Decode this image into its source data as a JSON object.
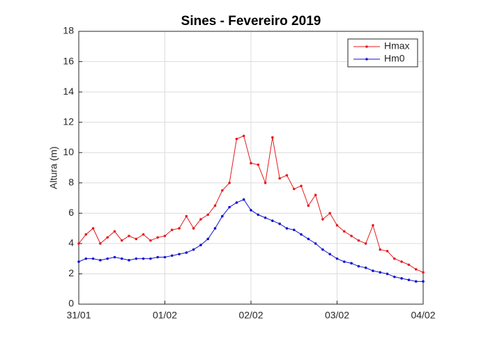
{
  "chart_data": {
    "type": "line",
    "title": "Sines - Fevereiro  2019",
    "y_label": "Altura (m)",
    "categories": [
      "31/01",
      null,
      null,
      null,
      null,
      null,
      null,
      null,
      null,
      null,
      null,
      null,
      "01/02",
      null,
      null,
      null,
      null,
      null,
      null,
      null,
      null,
      null,
      null,
      null,
      "02/02",
      null,
      null,
      null,
      null,
      null,
      null,
      null,
      null,
      null,
      null,
      null,
      "03/02",
      null,
      null,
      null,
      null,
      null,
      null,
      null,
      null,
      null,
      null,
      null,
      "04/02"
    ],
    "series": [
      {
        "name": "Hmax",
        "color": "#e41a1c",
        "values": [
          4.0,
          4.6,
          5.0,
          4.0,
          4.4,
          4.8,
          4.2,
          4.5,
          4.3,
          4.6,
          4.2,
          4.4,
          4.5,
          4.9,
          5.0,
          5.8,
          5.0,
          5.6,
          5.9,
          6.5,
          7.5,
          8.0,
          10.9,
          11.1,
          9.3,
          9.2,
          8.0,
          11.0,
          8.3,
          8.5,
          7.6,
          7.8,
          6.5,
          7.2,
          5.6,
          6.0,
          5.2,
          4.8,
          4.5,
          4.2,
          4.0,
          5.2,
          3.6,
          3.5,
          3.0,
          2.8,
          2.6,
          2.3,
          2.1
        ]
      },
      {
        "name": "Hm0",
        "color": "#1010d0",
        "values": [
          2.8,
          3.0,
          3.0,
          2.9,
          3.0,
          3.1,
          3.0,
          2.9,
          3.0,
          3.0,
          3.0,
          3.1,
          3.1,
          3.2,
          3.3,
          3.4,
          3.6,
          3.9,
          4.3,
          5.0,
          5.8,
          6.4,
          6.7,
          6.9,
          6.2,
          5.9,
          5.7,
          5.5,
          5.3,
          5.0,
          4.9,
          4.6,
          4.3,
          4.0,
          3.6,
          3.3,
          3.0,
          2.8,
          2.7,
          2.5,
          2.4,
          2.2,
          2.1,
          2.0,
          1.8,
          1.7,
          1.6,
          1.5,
          1.5
        ]
      }
    ],
    "ylim": [
      0,
      18
    ],
    "yticks": [
      0,
      2,
      4,
      6,
      8,
      10,
      12,
      14,
      16,
      18
    ],
    "grid": true,
    "legend": "upper right"
  }
}
